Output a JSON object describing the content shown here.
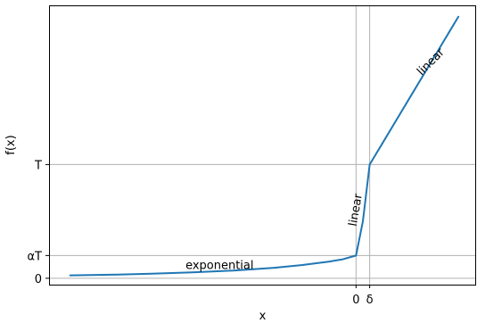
{
  "chart_data": {
    "type": "line",
    "title": "",
    "xlabel": "x",
    "ylabel": "f(x)",
    "grid": "reference lines at x = 0, x = δ, y = αT, y = T",
    "series": [
      {
        "x": [
          -20.95,
          -18,
          -15,
          -12,
          -9,
          -6,
          -4,
          -2,
          -1,
          0,
          0.5,
          1,
          2,
          4,
          6,
          7.5
        ],
        "y": [
          0.125,
          0.155,
          0.2,
          0.26,
          0.34,
          0.46,
          0.58,
          0.73,
          0.83,
          1.0,
          2.5,
          5.0,
          6.0,
          8.0,
          10.0,
          11.5
        ],
        "color": "#1f77b4"
      }
    ],
    "x_ticks": [
      {
        "value": 0,
        "label": "0"
      },
      {
        "value": 1,
        "label": "δ"
      }
    ],
    "y_ticks": [
      {
        "value": 0,
        "label": "0"
      },
      {
        "value": 1,
        "label": "αT"
      },
      {
        "value": 5,
        "label": "T"
      }
    ],
    "xlim": [
      -22.5,
      8.8
    ],
    "ylim": [
      -0.28,
      12.0
    ],
    "annotations": [
      {
        "text": "exponential",
        "x": -10.0,
        "y": 0.55,
        "rotation": 0
      },
      {
        "text": "linear",
        "x": 0.0,
        "y": 3.0,
        "rotation": -80
      },
      {
        "text": "linear",
        "x": 5.5,
        "y": 9.5,
        "rotation": -45
      }
    ]
  }
}
